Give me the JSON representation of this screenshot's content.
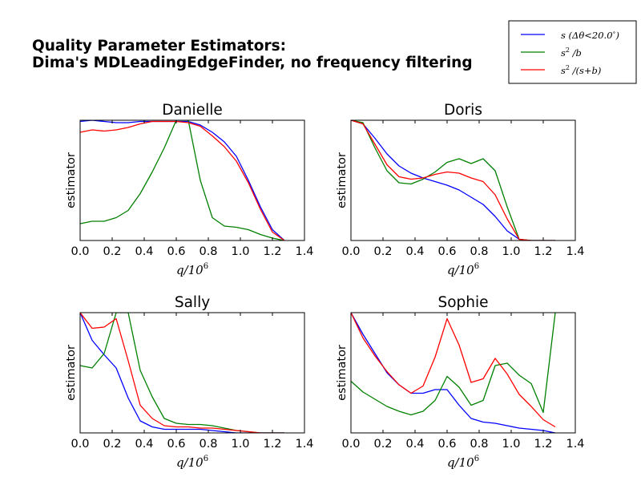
{
  "figure": {
    "title_line1": "Quality Parameter Estimators:",
    "title_line2": "Dima's MDLeadingEdgeFinder, no frequency filtering"
  },
  "legend": {
    "location": "top-right",
    "entries": [
      {
        "key": "s_dtheta",
        "color": "#0000ff"
      },
      {
        "key": "s2_b",
        "color": "#008000"
      },
      {
        "key": "s2_sb",
        "color": "#ff0000"
      }
    ]
  },
  "x_axis_label": "q/10^6",
  "y_axis_label": "estimator",
  "chart_data": [
    {
      "type": "line",
      "title": "Danielle",
      "xlabel": "q/10^6",
      "ylabel": "estimator",
      "xlim": [
        0.0,
        1.4
      ],
      "xticks": [
        "0.0",
        "0.2",
        "0.4",
        "0.6",
        "0.8",
        "1.0",
        "1.2",
        "1.4"
      ],
      "ylim": [
        0,
        1
      ],
      "grid": false,
      "x": [
        0.0,
        0.075,
        0.15,
        0.225,
        0.3,
        0.375,
        0.45,
        0.525,
        0.6,
        0.675,
        0.75,
        0.825,
        0.9,
        0.975,
        1.05,
        1.125,
        1.2,
        1.275
      ],
      "series": [
        {
          "name": "s (Δθ<20.0°)",
          "color": "#0000ff",
          "values": [
            0.99,
            1.0,
            0.99,
            0.98,
            0.98,
            0.99,
            0.99,
            0.99,
            0.99,
            0.99,
            0.96,
            0.9,
            0.82,
            0.7,
            0.5,
            0.28,
            0.09,
            0.0
          ]
        },
        {
          "name": "s²/b",
          "color": "#008000",
          "values": [
            0.14,
            0.16,
            0.16,
            0.19,
            0.25,
            0.39,
            0.57,
            0.77,
            1.0,
            1.0,
            0.5,
            0.19,
            0.12,
            0.11,
            0.09,
            0.05,
            0.02,
            0.0
          ]
        },
        {
          "name": "s²/(s+b)",
          "color": "#ff0000",
          "values": [
            0.9,
            0.92,
            0.91,
            0.92,
            0.94,
            0.97,
            0.99,
            0.99,
            0.99,
            0.98,
            0.95,
            0.87,
            0.78,
            0.66,
            0.48,
            0.26,
            0.07,
            0.0
          ]
        }
      ]
    },
    {
      "type": "line",
      "title": "Doris",
      "xlabel": "q/10^6",
      "ylabel": "estimator",
      "xlim": [
        0.0,
        1.4
      ],
      "xticks": [
        "0.0",
        "0.2",
        "0.4",
        "0.6",
        "0.8",
        "1.0",
        "1.2",
        "1.4"
      ],
      "ylim": [
        0,
        1
      ],
      "grid": false,
      "x": [
        0.0,
        0.075,
        0.15,
        0.225,
        0.3,
        0.375,
        0.45,
        0.525,
        0.6,
        0.675,
        0.75,
        0.825,
        0.9,
        0.975,
        1.05,
        1.125,
        1.2,
        1.275
      ],
      "series": [
        {
          "name": "s (Δθ<20.0°)",
          "color": "#0000ff",
          "values": [
            1.0,
            0.97,
            0.85,
            0.72,
            0.62,
            0.56,
            0.52,
            0.49,
            0.46,
            0.42,
            0.36,
            0.3,
            0.2,
            0.08,
            0.01,
            0.0,
            0.0,
            0.0
          ]
        },
        {
          "name": "s²/b",
          "color": "#008000",
          "values": [
            1.0,
            0.98,
            0.77,
            0.58,
            0.48,
            0.47,
            0.51,
            0.57,
            0.65,
            0.68,
            0.64,
            0.68,
            0.58,
            0.28,
            0.01,
            0.0,
            0.0,
            0.0
          ]
        },
        {
          "name": "s²/(s+b)",
          "color": "#ff0000",
          "values": [
            1.0,
            0.97,
            0.8,
            0.63,
            0.53,
            0.51,
            0.52,
            0.55,
            0.57,
            0.56,
            0.52,
            0.49,
            0.38,
            0.18,
            0.01,
            0.0,
            0.0,
            0.0
          ]
        }
      ]
    },
    {
      "type": "line",
      "title": "Sally",
      "xlabel": "q/10^6",
      "ylabel": "estimator",
      "xlim": [
        0.0,
        1.4
      ],
      "xticks": [
        "0.0",
        "0.2",
        "0.4",
        "0.6",
        "0.8",
        "1.0",
        "1.2",
        "1.4"
      ],
      "ylim": [
        0,
        1
      ],
      "grid": false,
      "x": [
        0.0,
        0.075,
        0.15,
        0.225,
        0.3,
        0.375,
        0.45,
        0.525,
        0.6,
        0.675,
        0.75,
        0.825,
        0.9,
        0.975,
        1.05,
        1.125,
        1.2,
        1.275
      ],
      "series": [
        {
          "name": "s (Δθ<20.0°)",
          "color": "#0000ff",
          "values": [
            1.0,
            0.77,
            0.65,
            0.54,
            0.29,
            0.1,
            0.05,
            0.03,
            0.03,
            0.03,
            0.03,
            0.02,
            0.01,
            0.0,
            0.0,
            0.0,
            0.0,
            0.0
          ]
        },
        {
          "name": "s²/b",
          "color": "#008000",
          "values": [
            0.56,
            0.54,
            0.66,
            1.0,
            1.0,
            0.52,
            0.3,
            0.12,
            0.08,
            0.07,
            0.07,
            0.06,
            0.04,
            0.02,
            0.01,
            0.0,
            0.0,
            0.0
          ]
        },
        {
          "name": "s²/(s+b)",
          "color": "#ff0000",
          "values": [
            1.0,
            0.87,
            0.88,
            0.95,
            0.6,
            0.23,
            0.12,
            0.06,
            0.05,
            0.05,
            0.04,
            0.04,
            0.03,
            0.02,
            0.01,
            0.0,
            0.0,
            0.0
          ]
        }
      ]
    },
    {
      "type": "line",
      "title": "Sophie",
      "xlabel": "q/10^6",
      "ylabel": "estimator",
      "xlim": [
        0.0,
        1.4
      ],
      "xticks": [
        "0.0",
        "0.2",
        "0.4",
        "0.6",
        "0.8",
        "1.0",
        "1.2",
        "1.4"
      ],
      "ylim": [
        0,
        1
      ],
      "grid": false,
      "x": [
        0.0,
        0.075,
        0.15,
        0.225,
        0.3,
        0.375,
        0.45,
        0.525,
        0.6,
        0.675,
        0.75,
        0.825,
        0.9,
        0.975,
        1.05,
        1.125,
        1.2,
        1.275
      ],
      "series": [
        {
          "name": "s (Δθ<20.0°)",
          "color": "#0000ff",
          "values": [
            1.0,
            0.82,
            0.66,
            0.5,
            0.4,
            0.33,
            0.33,
            0.36,
            0.36,
            0.23,
            0.12,
            0.09,
            0.08,
            0.06,
            0.04,
            0.03,
            0.02,
            0.0
          ]
        },
        {
          "name": "s²/b",
          "color": "#008000",
          "values": [
            0.43,
            0.34,
            0.28,
            0.22,
            0.18,
            0.15,
            0.18,
            0.27,
            0.47,
            0.38,
            0.23,
            0.27,
            0.56,
            0.58,
            0.48,
            0.41,
            0.17,
            1.0
          ]
        },
        {
          "name": "s²/(s+b)",
          "color": "#ff0000",
          "values": [
            1.0,
            0.79,
            0.64,
            0.51,
            0.4,
            0.33,
            0.39,
            0.63,
            0.95,
            0.73,
            0.42,
            0.45,
            0.62,
            0.49,
            0.32,
            0.22,
            0.11,
            0.05
          ]
        }
      ]
    }
  ]
}
